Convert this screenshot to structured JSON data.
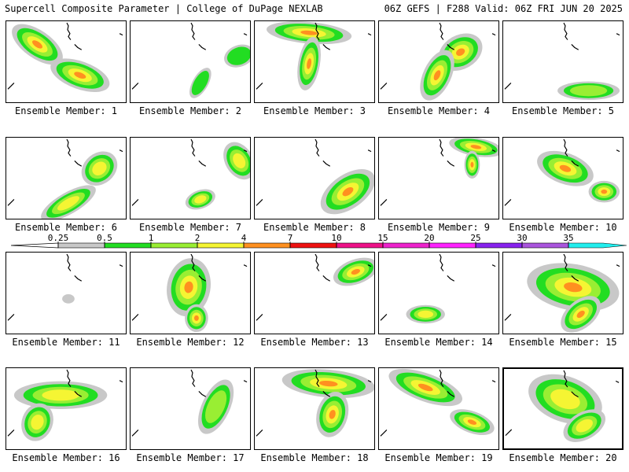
{
  "header": {
    "title": "Supercell Composite Parameter | College of DuPage NEXLAB",
    "run_info": "06Z GEFS | F288 Valid: 06Z FRI JUN 20 2025"
  },
  "colors": {
    "c0": "#c8c8c8",
    "c1": "#22dd22",
    "c2": "#99ee33",
    "c3": "#f5f533",
    "c4": "#ff9020",
    "c5": "#ee1111",
    "c6": "#ee1188",
    "c7": "#ee22cc",
    "c8": "#ff22ff",
    "c9": "#8822ee",
    "c10": "#aa55dd",
    "c11": "#22eeee"
  },
  "colorbar": {
    "labels": [
      "0.25",
      "0.5",
      "1",
      "2",
      "4",
      "7",
      "10",
      "15",
      "20",
      "25",
      "30",
      "35"
    ]
  },
  "panels": [
    {
      "label": "Ensemble Member: 1",
      "level": 4
    },
    {
      "label": "Ensemble Member: 2",
      "level": 1
    },
    {
      "label": "Ensemble Member: 3",
      "level": 4
    },
    {
      "label": "Ensemble Member: 4",
      "level": 4
    },
    {
      "label": "Ensemble Member: 5",
      "level": 2
    },
    {
      "label": "Ensemble Member: 6",
      "level": 3
    },
    {
      "label": "Ensemble Member: 7",
      "level": 3
    },
    {
      "label": "Ensemble Member: 8",
      "level": 4
    },
    {
      "label": "Ensemble Member: 9",
      "level": 4
    },
    {
      "label": "Ensemble Member: 10",
      "level": 4
    },
    {
      "label": "Ensemble Member: 11",
      "level": 0
    },
    {
      "label": "Ensemble Member: 12",
      "level": 4
    },
    {
      "label": "Ensemble Member: 13",
      "level": 4
    },
    {
      "label": "Ensemble Member: 14",
      "level": 3
    },
    {
      "label": "Ensemble Member: 15",
      "level": 4
    },
    {
      "label": "Ensemble Member: 16",
      "level": 3
    },
    {
      "label": "Ensemble Member: 17",
      "level": 2
    },
    {
      "label": "Ensemble Member: 18",
      "level": 4
    },
    {
      "label": "Ensemble Member: 19",
      "level": 4
    },
    {
      "label": "Ensemble Member: 20",
      "level": 3,
      "selected": true
    }
  ]
}
